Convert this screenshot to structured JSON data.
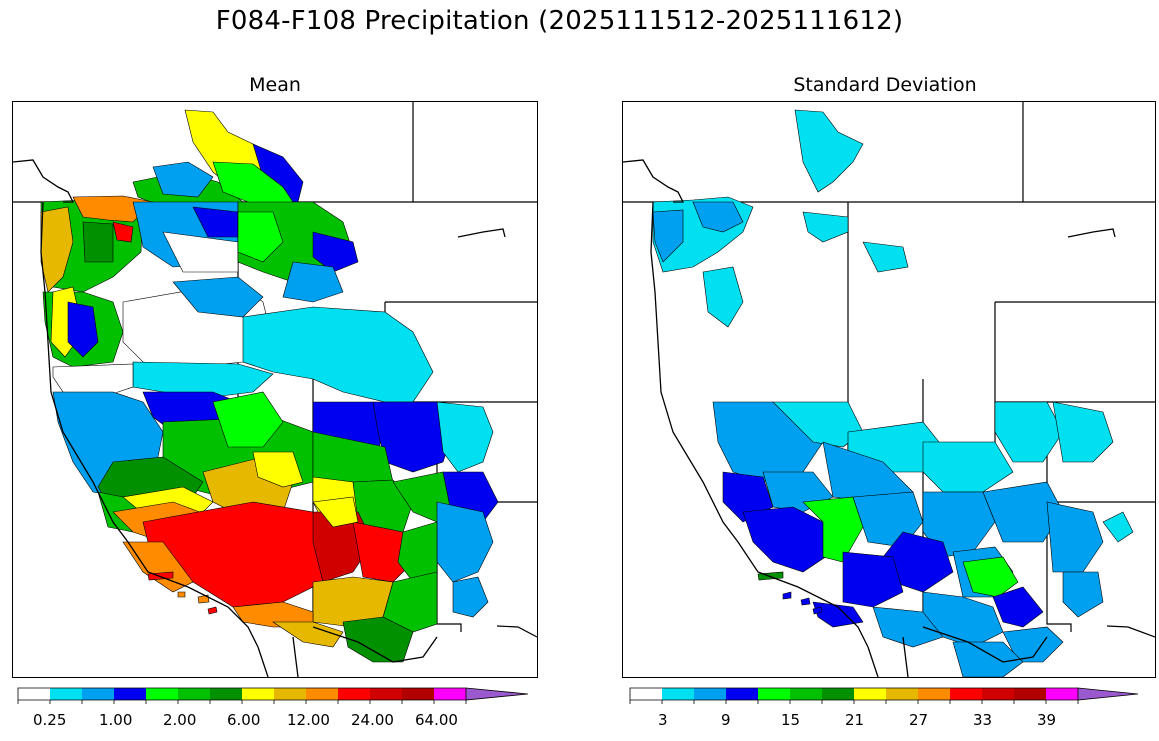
{
  "title": "F084-F108 Precipitation (2025111512-2025111612)",
  "panels": [
    {
      "title": "Mean",
      "colorbar": {
        "colors": [
          "#ffffff",
          "#00e0f0",
          "#00a0f0",
          "#0000f0",
          "#00ff00",
          "#00c000",
          "#009000",
          "#ffff00",
          "#e6b800",
          "#ff8c00",
          "#ff0000",
          "#d00000",
          "#b00000",
          "#ff00ff",
          "#9b59d0"
        ],
        "tick_labels": [
          "0.25",
          "1.00",
          "2.00",
          "6.00",
          "12.00",
          "24.00",
          "64.00"
        ]
      }
    },
    {
      "title": "Standard Deviation",
      "colorbar": {
        "colors": [
          "#ffffff",
          "#00e0f0",
          "#00a0f0",
          "#0000f0",
          "#00ff00",
          "#00c000",
          "#009000",
          "#ffff00",
          "#e6b800",
          "#ff8c00",
          "#ff0000",
          "#d00000",
          "#b00000",
          "#ff00ff",
          "#9b59d0"
        ],
        "tick_labels": [
          "3",
          "9",
          "15",
          "21",
          "27",
          "33",
          "39"
        ]
      }
    }
  ]
}
